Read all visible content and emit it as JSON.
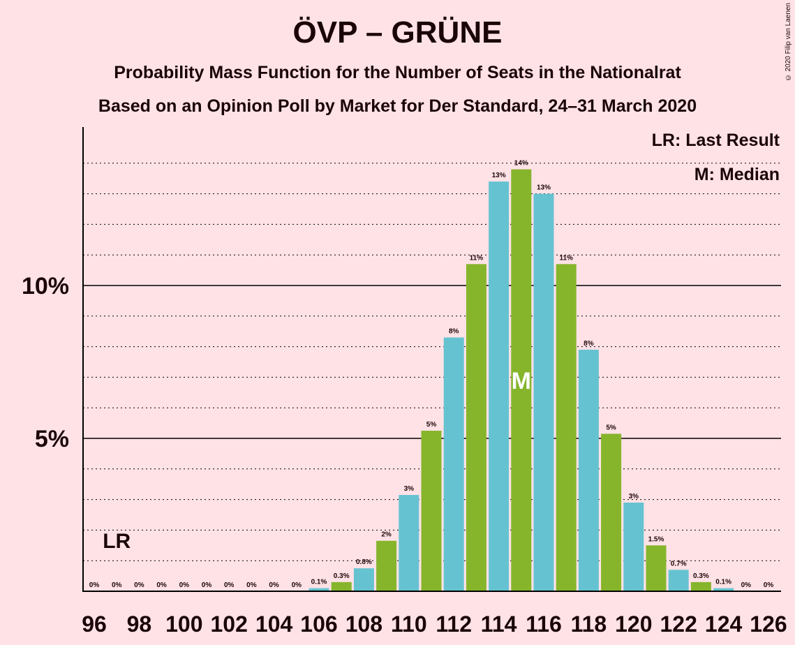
{
  "title": "ÖVP – GRÜNE",
  "subtitle1": "Probability Mass Function for the Number of Seats in the Nationalrat",
  "subtitle2": "Based on an Opinion Poll by Market for Der Standard, 24–31 March 2020",
  "copyright": "© 2020 Filip van Laenen",
  "legend": {
    "last_result": "LR: Last Result",
    "median": "M: Median"
  },
  "colors": {
    "background": "#FFE2E6",
    "bar_teal": "#65C3D1",
    "bar_green": "#86B52C",
    "text": "#1a0508"
  },
  "chart_data": {
    "type": "bar",
    "title": "ÖVP – GRÜNE",
    "xlabel": "",
    "ylabel": "",
    "ylim": [
      0,
      15
    ],
    "y_ticks": [
      {
        "value": 5,
        "label": "5%"
      },
      {
        "value": 10,
        "label": "10%"
      }
    ],
    "grid": "dotted at every 1%, solid at 5% and 10%",
    "x": [
      96,
      97,
      98,
      99,
      100,
      101,
      102,
      103,
      104,
      105,
      106,
      107,
      108,
      109,
      110,
      111,
      112,
      113,
      114,
      115,
      116,
      117,
      118,
      119,
      120,
      121,
      122,
      123,
      124,
      125,
      126
    ],
    "x_tick_labels": [
      "96",
      "98",
      "100",
      "102",
      "104",
      "106",
      "108",
      "110",
      "112",
      "114",
      "116",
      "118",
      "120",
      "122",
      "124",
      "126"
    ],
    "values": [
      0,
      0,
      0,
      0,
      0,
      0,
      0,
      0,
      0,
      0,
      0.1,
      0.3,
      0.75,
      1.65,
      3.15,
      5.25,
      8.3,
      10.7,
      13.4,
      13.8,
      13.0,
      10.7,
      7.9,
      5.15,
      2.9,
      1.5,
      0.7,
      0.3,
      0.1,
      0,
      0
    ],
    "value_labels": [
      "0%",
      "0%",
      "0%",
      "0%",
      "0%",
      "0%",
      "0%",
      "0%",
      "0%",
      "0%",
      "0.1%",
      "0.3%",
      "0.8%",
      "2%",
      "3%",
      "5%",
      "8%",
      "11%",
      "13%",
      "14%",
      "13%",
      "11%",
      "8%",
      "5%",
      "3%",
      "1.5%",
      "0.7%",
      "0.3%",
      "0.1%",
      "0%",
      "0%"
    ],
    "last_result_seat": 97,
    "last_result_label": "LR",
    "median_seat": 115,
    "median_label": "M"
  }
}
